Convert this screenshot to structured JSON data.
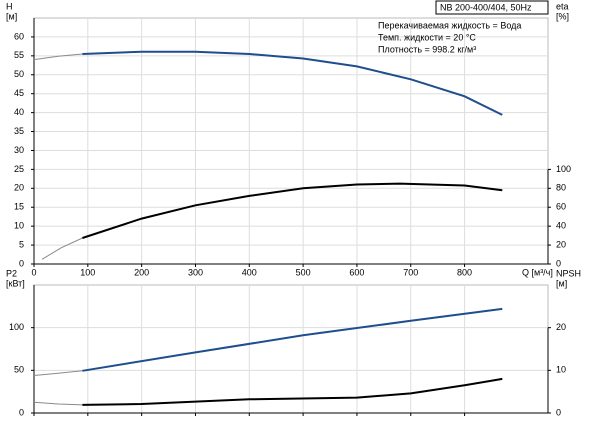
{
  "chart_data": [
    {
      "type": "line",
      "title": "NB 200-400/404, 50Hz",
      "annotations": [
        "Перекачиваемая жидкость = Вода",
        "Темп. жидкости = 20 °C",
        "Плотность = 998.2 кг/м³"
      ],
      "ylabel": "H",
      "yunit": "[м]",
      "y2label": "eta",
      "y2unit": "[%]",
      "xlabel": "Q [м³/ч]",
      "xlim": [
        0,
        955
      ],
      "xticks": [
        0,
        100,
        200,
        300,
        400,
        500,
        600,
        700,
        800
      ],
      "ylim": [
        0,
        65
      ],
      "yticks": [
        0,
        5,
        10,
        15,
        20,
        25,
        30,
        35,
        40,
        45,
        50,
        55,
        60
      ],
      "y2lim": [
        0,
        260
      ],
      "y2ticks": [
        0,
        20,
        40,
        60,
        80,
        100
      ],
      "grid": true,
      "xtick_labels": true,
      "series": [
        {
          "color": "#8a8a8a",
          "dash": true,
          "axis": "y",
          "x": [
            0,
            45,
            90
          ],
          "values": [
            54,
            54.9,
            55.5
          ]
        },
        {
          "color": "#1f4e8c",
          "dash": false,
          "axis": "y",
          "x": [
            90,
            200,
            300,
            400,
            500,
            600,
            700,
            800,
            870
          ],
          "values": [
            55.5,
            56.1,
            56.1,
            55.5,
            54.3,
            52.2,
            48.8,
            44.3,
            39.4
          ]
        },
        {
          "color": "#8a8a8a",
          "dash": true,
          "axis": "y2",
          "x": [
            15,
            50,
            90
          ],
          "values": [
            5,
            17,
            27.5
          ]
        },
        {
          "color": "#000000",
          "dash": false,
          "axis": "y2",
          "x": [
            90,
            200,
            300,
            400,
            500,
            600,
            680,
            800,
            870
          ],
          "values": [
            27.5,
            48,
            62,
            72,
            80,
            84,
            85,
            83,
            78
          ]
        }
      ]
    },
    {
      "type": "line",
      "ylabel": "P2",
      "yunit": "[кВт]",
      "y2label": "NPSH",
      "y2unit": "[м]",
      "xlim": [
        0,
        955
      ],
      "xticks": [
        0,
        100,
        200,
        300,
        400,
        500,
        600,
        700,
        800
      ],
      "ylim": [
        0,
        150
      ],
      "yticks": [
        0,
        50,
        100
      ],
      "y2lim": [
        0,
        30
      ],
      "y2ticks": [
        0,
        10,
        20
      ],
      "grid": true,
      "xtick_labels": false,
      "series": [
        {
          "color": "#8a8a8a",
          "dash": true,
          "axis": "y",
          "x": [
            0,
            45,
            90
          ],
          "values": [
            44,
            46.5,
            49.5
          ]
        },
        {
          "color": "#1f4e8c",
          "dash": false,
          "axis": "y",
          "x": [
            90,
            300,
            500,
            700,
            870
          ],
          "values": [
            49.5,
            71,
            91,
            108,
            122
          ]
        },
        {
          "color": "#8a8a8a",
          "dash": true,
          "axis": "y2",
          "x": [
            0,
            45,
            90
          ],
          "values": [
            2.5,
            2.1,
            1.9
          ]
        },
        {
          "color": "#000000",
          "dash": false,
          "axis": "y2",
          "x": [
            90,
            200,
            400,
            600,
            700,
            800,
            870
          ],
          "values": [
            1.9,
            2.1,
            3.2,
            3.6,
            4.6,
            6.5,
            8
          ]
        }
      ]
    }
  ]
}
